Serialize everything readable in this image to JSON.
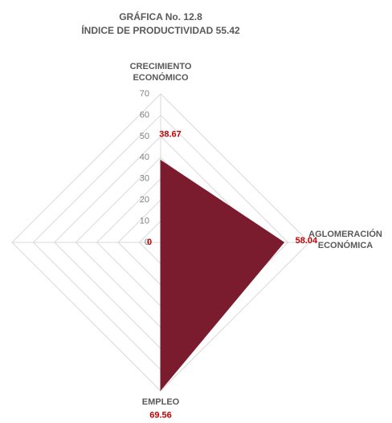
{
  "chart_data": {
    "type": "radar",
    "title": "GRÁFICA No. 12.8",
    "subtitle": "ÍNDICE DE PRODUCTIVIDAD 55.42",
    "categories": [
      "CRECIMIENTO ECONÓMICO",
      "AGLOMERACIÓN ECONÓMICA",
      "EMPLEO",
      null
    ],
    "values": [
      38.67,
      58.04,
      69.56,
      0
    ],
    "color": "#7b1c2e",
    "label_color": "#c00000",
    "ylim": [
      0,
      70
    ],
    "yticks": [
      0,
      10,
      20,
      30,
      40,
      50,
      60,
      70
    ],
    "grid": true
  }
}
